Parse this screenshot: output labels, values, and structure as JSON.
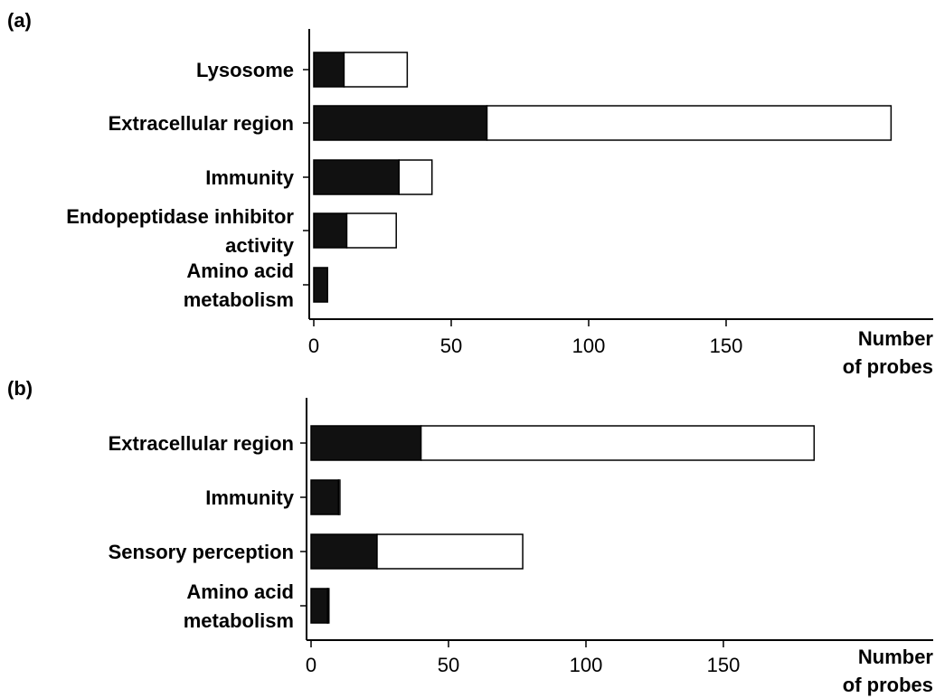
{
  "colors": {
    "segment_dark": "#111111",
    "segment_light": "#ffffff",
    "outline": "#000000"
  },
  "chart_data": [
    {
      "panel_label": "(a)",
      "type": "bar",
      "orientation": "horizontal",
      "stacked": true,
      "categories": [
        [
          "Lysosome"
        ],
        [
          "Extracellular region"
        ],
        [
          "Immunity"
        ],
        [
          "Endopeptidase inhibitor",
          "activity"
        ],
        [
          "Amino acid",
          "metabolism"
        ]
      ],
      "series": [
        {
          "color": "#111111",
          "values": [
            11,
            63,
            31,
            12,
            5
          ]
        },
        {
          "color": "#ffffff",
          "values": [
            23,
            147,
            12,
            18,
            0
          ]
        }
      ],
      "xlabel": [
        "Number",
        "of probes"
      ],
      "ticks": [
        0,
        50,
        100,
        150
      ],
      "xlim": [
        0,
        228
      ],
      "grid": false,
      "legend": "none"
    },
    {
      "panel_label": "(b)",
      "type": "bar",
      "orientation": "horizontal",
      "stacked": true,
      "categories": [
        [
          "Extracellular region"
        ],
        [
          "Immunity"
        ],
        [
          "Sensory perception"
        ],
        [
          "Amino acid",
          "metabolism"
        ]
      ],
      "series": [
        {
          "color": "#111111",
          "values": [
            40,
            10,
            24,
            6
          ]
        },
        {
          "color": "#ffffff",
          "values": [
            143,
            0.5,
            53,
            0.5
          ]
        }
      ],
      "xlabel": [
        "Number",
        "of probes"
      ],
      "ticks": [
        0,
        50,
        100,
        150
      ],
      "xlim": [
        0,
        226
      ],
      "grid": false,
      "legend": "none"
    }
  ]
}
